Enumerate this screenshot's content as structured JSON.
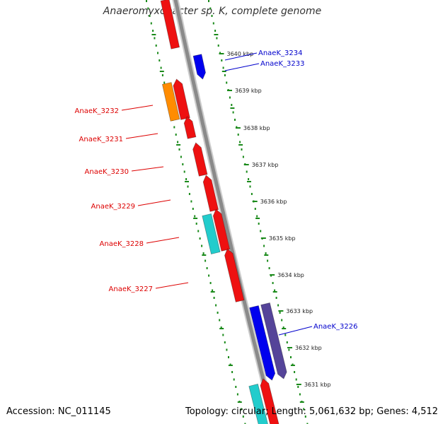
{
  "title": "Anaeromyxobacter sp. K, complete genome",
  "footer": {
    "accession_text": "Accession: NC_011145",
    "info_text": "Topology: circular; Length: 5,061,632 bp; Genes: 4,512"
  },
  "colors": {
    "backbone": "#8a8a8a",
    "tick_dots": "#1a8a1a",
    "forward_gene": "#ee1111",
    "reverse_gene": "#0000ee",
    "label_red": "#dd0000",
    "label_blue": "#0000cc",
    "orange_gene": "#ff8c00",
    "cyan_gene": "#22cccc",
    "purple_gene": "#554499"
  },
  "ticks": [
    {
      "label": "3640 kbp"
    },
    {
      "label": "3639 kbp"
    },
    {
      "label": "3638 kbp"
    },
    {
      "label": "3637 kbp"
    },
    {
      "label": "3636 kbp"
    },
    {
      "label": "3635 kbp"
    },
    {
      "label": "3634 kbp"
    },
    {
      "label": "3633 kbp"
    },
    {
      "label": "3632 kbp"
    },
    {
      "label": "3631 kbp"
    }
  ],
  "gene_labels": [
    {
      "name": "AnaeK_3234",
      "color": "#0000cc"
    },
    {
      "name": "AnaeK_3233",
      "color": "#0000cc"
    },
    {
      "name": "AnaeK_3232",
      "color": "#dd0000"
    },
    {
      "name": "AnaeK_3231",
      "color": "#dd0000"
    },
    {
      "name": "AnaeK_3230",
      "color": "#dd0000"
    },
    {
      "name": "AnaeK_3229",
      "color": "#dd0000"
    },
    {
      "name": "AnaeK_3228",
      "color": "#dd0000"
    },
    {
      "name": "AnaeK_3227",
      "color": "#dd0000"
    },
    {
      "name": "AnaeK_3226",
      "color": "#0000cc"
    }
  ]
}
